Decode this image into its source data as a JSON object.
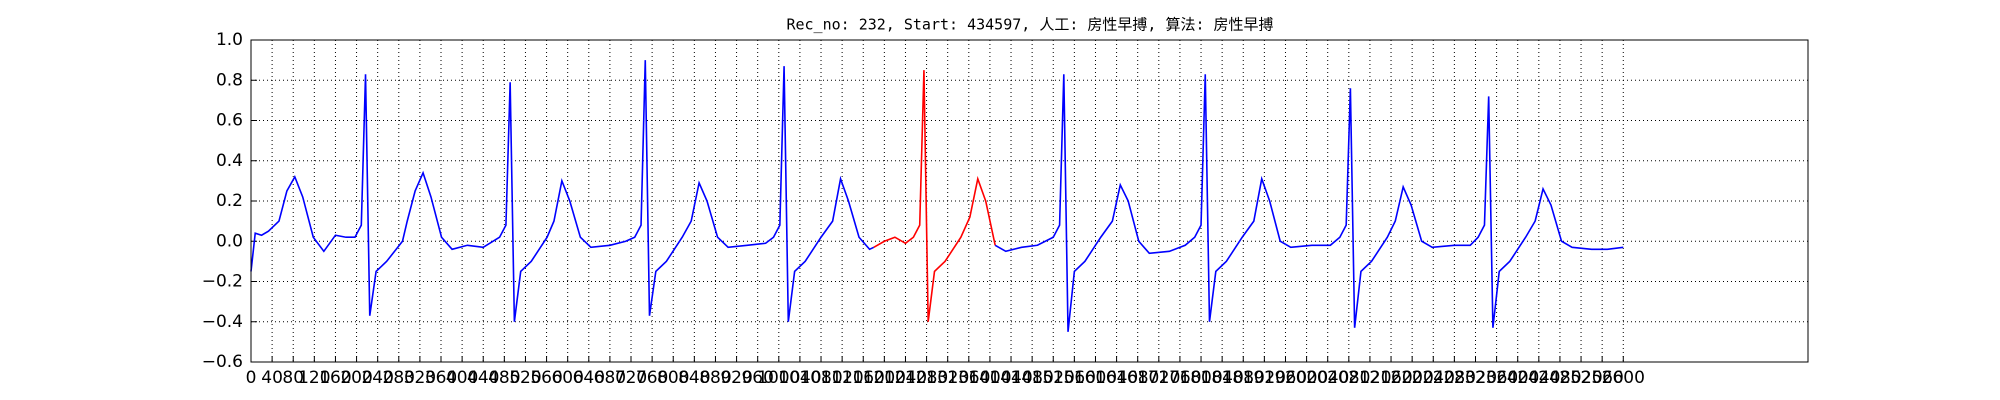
{
  "chart_data": {
    "type": "line",
    "title": "Rec_no: 232, Start: 434597, 人工: 房性早搏, 算法: 房性早搏",
    "xlim": [
      0,
      2950
    ],
    "ylim": [
      -0.6,
      1.0
    ],
    "grid": true,
    "xticks": [
      0,
      40,
      80,
      120,
      160,
      200,
      240,
      280,
      320,
      360,
      400,
      440,
      480,
      520,
      560,
      600,
      640,
      680,
      720,
      760,
      800,
      840,
      880,
      920,
      960,
      1000,
      1040,
      1080,
      1120,
      1160,
      1200,
      1240,
      1280,
      1320,
      1360,
      1400,
      1440,
      1480,
      1520,
      1560,
      1600,
      1640,
      1680,
      1720,
      1760,
      1800,
      1840,
      1880,
      1920,
      1960,
      2000,
      2040,
      2080,
      2120,
      2160,
      2200,
      2240,
      2280,
      2320,
      2360,
      2400,
      2440,
      2480,
      2520,
      2560,
      2600
    ],
    "yticks": [
      {
        "value": -0.6,
        "label": "−0.6"
      },
      {
        "value": -0.4,
        "label": "−0.4"
      },
      {
        "value": -0.2,
        "label": "−0.2"
      },
      {
        "value": 0,
        "label": "0.0"
      },
      {
        "value": 0.2,
        "label": "0.2"
      },
      {
        "value": 0.4,
        "label": "0.4"
      },
      {
        "value": 0.6,
        "label": "0.6"
      },
      {
        "value": 0.8,
        "label": "0.8"
      },
      {
        "value": 1.0,
        "label": "1.0"
      }
    ],
    "series": [
      {
        "color": "#0000ff",
        "x": [
          0,
          8,
          20,
          33,
          53,
          68,
          83,
          98,
          118,
          138,
          160,
          180,
          197,
          209,
          217,
          225,
          237,
          257,
          287,
          296,
          311,
          326,
          341,
          361,
          381,
          410,
          440,
          471,
          483,
          491,
          499,
          511,
          531,
          561,
          574,
          589,
          604,
          624,
          644,
          680,
          710,
          727,
          739,
          747,
          755,
          767,
          787,
          817,
          834,
          849,
          864,
          884,
          904,
          940,
          975,
          990,
          1002,
          1010,
          1018,
          1030,
          1050,
          1080,
          1102,
          1117,
          1132,
          1152,
          1172,
          1180
        ],
        "values": [
          -0.15,
          0.04,
          0.03,
          0.05,
          0.1,
          0.25,
          0.32,
          0.22,
          0.02,
          -0.05,
          0.03,
          0.02,
          0.02,
          0.08,
          0.83,
          -0.37,
          -0.15,
          -0.1,
          0.0,
          0.1,
          0.25,
          0.34,
          0.22,
          0.02,
          -0.04,
          -0.02,
          -0.03,
          0.02,
          0.08,
          0.79,
          -0.4,
          -0.15,
          -0.1,
          0.02,
          0.1,
          0.3,
          0.2,
          0.02,
          -0.03,
          -0.02,
          0.0,
          0.02,
          0.08,
          0.9,
          -0.37,
          -0.15,
          -0.1,
          0.02,
          0.1,
          0.29,
          0.2,
          0.02,
          -0.03,
          -0.02,
          -0.01,
          0.02,
          0.08,
          0.87,
          -0.4,
          -0.15,
          -0.1,
          0.02,
          0.1,
          0.31,
          0.2,
          0.02,
          -0.04,
          -0.03
        ]
      },
      {
        "color": "#ff0000",
        "x": [
          1180,
          1200,
          1220,
          1240,
          1255,
          1267,
          1275,
          1283,
          1295,
          1315,
          1345,
          1362,
          1377,
          1392,
          1410
        ],
        "values": [
          -0.03,
          0.0,
          0.02,
          -0.01,
          0.02,
          0.08,
          0.85,
          -0.4,
          -0.15,
          -0.1,
          0.02,
          0.12,
          0.31,
          0.2,
          -0.02
        ]
      },
      {
        "color": "#0000ff",
        "x": [
          1410,
          1430,
          1460,
          1490,
          1520,
          1532,
          1540,
          1548,
          1560,
          1580,
          1610,
          1632,
          1647,
          1662,
          1682,
          1702,
          1740,
          1770,
          1788,
          1800,
          1808,
          1816,
          1828,
          1848,
          1878,
          1900,
          1915,
          1930,
          1950,
          1970,
          2010,
          2045,
          2063,
          2075,
          2083,
          2091,
          2103,
          2123,
          2153,
          2168,
          2183,
          2198,
          2218,
          2238,
          2280,
          2310,
          2325,
          2337,
          2345,
          2353,
          2365,
          2385,
          2415,
          2433,
          2448,
          2463,
          2483,
          2503,
          2540,
          2570,
          2600
        ],
        "values": [
          -0.02,
          -0.05,
          -0.03,
          -0.02,
          0.02,
          0.08,
          0.83,
          -0.45,
          -0.15,
          -0.1,
          0.02,
          0.1,
          0.28,
          0.2,
          0.0,
          -0.06,
          -0.05,
          -0.02,
          0.02,
          0.08,
          0.83,
          -0.4,
          -0.15,
          -0.1,
          0.02,
          0.1,
          0.31,
          0.2,
          0.0,
          -0.03,
          -0.02,
          -0.02,
          0.02,
          0.08,
          0.76,
          -0.43,
          -0.15,
          -0.1,
          0.02,
          0.1,
          0.27,
          0.18,
          0.0,
          -0.03,
          -0.02,
          -0.02,
          0.02,
          0.08,
          0.72,
          -0.43,
          -0.15,
          -0.1,
          0.02,
          0.1,
          0.26,
          0.18,
          0.0,
          -0.03,
          -0.04,
          -0.04,
          -0.03
        ]
      }
    ]
  }
}
